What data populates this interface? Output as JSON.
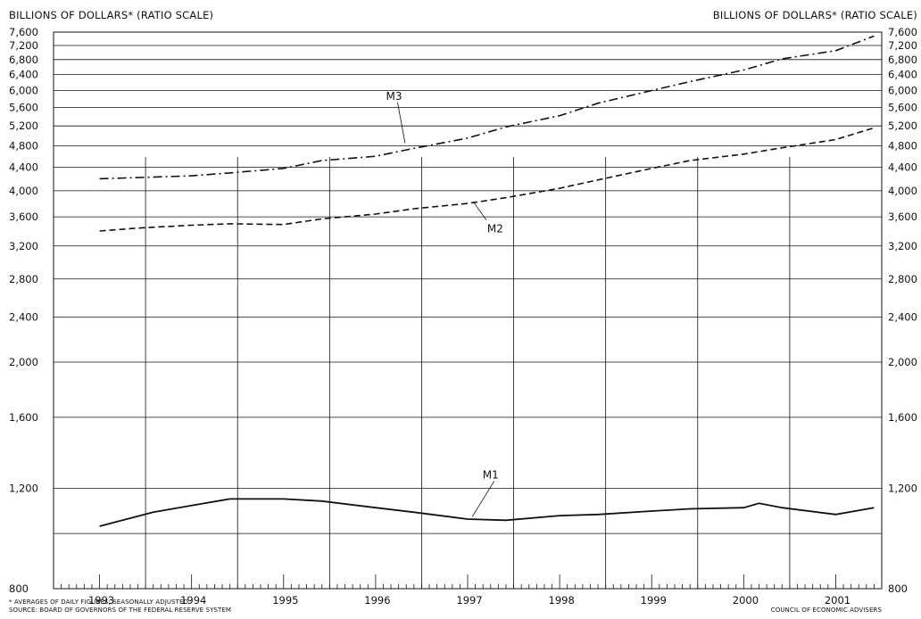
{
  "ylabel_left": "BILLIONS OF DOLLARS* (RATIO SCALE)",
  "ylabel_right": "BILLIONS OF DOLLARS* (RATIO SCALE)",
  "footnote": "* AVERAGES OF DAILY FIGURES; SEASONALLY ADJUSTED",
  "source": "SOURCE: BOARD OF GOVERNORS OF THE FEDERAL RESERVE SYSTEM",
  "credit": "COUNCIL OF ECONOMIC ADVISERS",
  "chart_data": {
    "type": "line",
    "title": "",
    "xlabel": "",
    "ylabel": "BILLIONS OF DOLLARS* (RATIO SCALE)",
    "yscale": "log",
    "ylim": [
      800,
      7600
    ],
    "xlim": [
      "1993-01",
      "2001-12"
    ],
    "grid": true,
    "yticks": [
      800,
      1200,
      1600,
      2000,
      2400,
      2800,
      3200,
      3600,
      4000,
      4400,
      4800,
      5200,
      5600,
      6000,
      6400,
      6800,
      7200,
      7600
    ],
    "ytick_labels": [
      "800",
      "1,200",
      "1,600",
      "2,000",
      "2,400",
      "2,800",
      "3,200",
      "3,600",
      "4,000",
      "4,400",
      "4,800",
      "5,200",
      "5,600",
      "6,000",
      "6,400",
      "6,800",
      "7,200",
      "7,600"
    ],
    "xtick_labels": [
      "1993",
      "1994",
      "1995",
      "1996",
      "1997",
      "1998",
      "1999",
      "2000",
      "2001"
    ],
    "series": [
      {
        "name": "M3",
        "style": "dash-dot",
        "x": [
          "1993-01",
          "1993-06",
          "1994-01",
          "1994-06",
          "1995-01",
          "1995-06",
          "1996-01",
          "1996-06",
          "1997-01",
          "1997-06",
          "1998-01",
          "1998-06",
          "1999-01",
          "1999-06",
          "2000-01",
          "2000-06",
          "2001-01",
          "2001-06"
        ],
        "values": [
          4200,
          4220,
          4250,
          4300,
          4380,
          4520,
          4600,
          4750,
          4950,
          5180,
          5420,
          5700,
          6000,
          6220,
          6520,
          6820,
          7050,
          7480
        ]
      },
      {
        "name": "M2",
        "style": "dashed",
        "x": [
          "1993-01",
          "1993-06",
          "1994-01",
          "1994-06",
          "1995-01",
          "1995-06",
          "1996-01",
          "1996-06",
          "1997-01",
          "1997-06",
          "1998-01",
          "1998-06",
          "1999-01",
          "1999-06",
          "2000-01",
          "2000-06",
          "2001-01",
          "2001-06"
        ],
        "values": [
          3400,
          3440,
          3480,
          3500,
          3490,
          3570,
          3640,
          3720,
          3800,
          3890,
          4040,
          4180,
          4380,
          4520,
          4640,
          4760,
          4920,
          5160
        ]
      },
      {
        "name": "M1",
        "style": "solid",
        "x": [
          "1993-01",
          "1993-04",
          "1993-08",
          "1994-01",
          "1994-06",
          "1995-01",
          "1995-06",
          "1996-01",
          "1996-06",
          "1997-01",
          "1997-06",
          "1998-01",
          "1998-06",
          "1999-01",
          "1999-06",
          "2000-01",
          "2000-03",
          "2000-06",
          "2001-01",
          "2001-06"
        ],
        "values": [
          1030,
          1055,
          1090,
          1120,
          1150,
          1150,
          1140,
          1110,
          1090,
          1060,
          1055,
          1075,
          1080,
          1095,
          1105,
          1110,
          1130,
          1110,
          1080,
          1110
        ]
      }
    ],
    "annotations": [
      "M3",
      "M2",
      "M1"
    ]
  }
}
